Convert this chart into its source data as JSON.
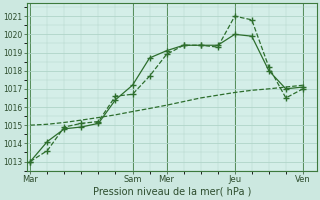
{
  "background_color": "#cce8e0",
  "plot_bg_color": "#d4eee8",
  "grid_color": "#b0d4c8",
  "line_color": "#2d6e2d",
  "spine_color": "#3d7a3d",
  "ylim": [
    1012.5,
    1021.7
  ],
  "xlim": [
    -0.1,
    8.4
  ],
  "xlabel": "Pression niveau de la mer( hPa )",
  "yticks": [
    1013,
    1014,
    1015,
    1016,
    1017,
    1018,
    1019,
    1020,
    1021
  ],
  "xtick_labels": [
    "Mar",
    "Sam",
    "Mer",
    "Jeu",
    "Ven"
  ],
  "xtick_positions": [
    0,
    3.0,
    4.0,
    6.0,
    8.0
  ],
  "vline_positions": [
    0,
    3.0,
    4.0,
    6.0,
    8.0
  ],
  "series1_x": [
    0,
    0.5,
    1.0,
    1.5,
    2.0,
    2.5,
    3.0,
    3.5,
    4.0,
    4.5,
    5.0,
    5.5,
    6.0,
    6.5,
    7.0,
    7.5,
    8.0
  ],
  "series1_y": [
    1013.0,
    1013.6,
    1014.9,
    1015.1,
    1015.2,
    1016.6,
    1016.7,
    1017.7,
    1018.9,
    1019.4,
    1019.4,
    1019.3,
    1021.0,
    1020.8,
    1018.2,
    1016.5,
    1017.0
  ],
  "series2_x": [
    0,
    0.5,
    1.0,
    1.5,
    2.0,
    2.5,
    3.0,
    3.5,
    4.0,
    4.5,
    5.0,
    5.5,
    6.0,
    6.5,
    7.0,
    7.5,
    8.0
  ],
  "series2_y": [
    1013.0,
    1014.1,
    1014.8,
    1014.9,
    1015.1,
    1016.4,
    1017.2,
    1018.7,
    1019.1,
    1019.4,
    1019.4,
    1019.4,
    1020.0,
    1019.9,
    1018.0,
    1017.0,
    1017.1
  ],
  "series3_x": [
    0,
    0.5,
    1.0,
    1.5,
    2.0,
    2.5,
    3.0,
    3.5,
    4.0,
    4.5,
    5.0,
    5.5,
    6.0,
    6.5,
    7.0,
    7.5,
    8.0
  ],
  "series3_y": [
    1015.0,
    1015.05,
    1015.15,
    1015.28,
    1015.42,
    1015.57,
    1015.75,
    1015.92,
    1016.1,
    1016.3,
    1016.5,
    1016.65,
    1016.8,
    1016.92,
    1017.0,
    1017.1,
    1017.2
  ],
  "ytick_fontsize": 5.5,
  "xtick_fontsize": 6.0,
  "xlabel_fontsize": 7.0
}
